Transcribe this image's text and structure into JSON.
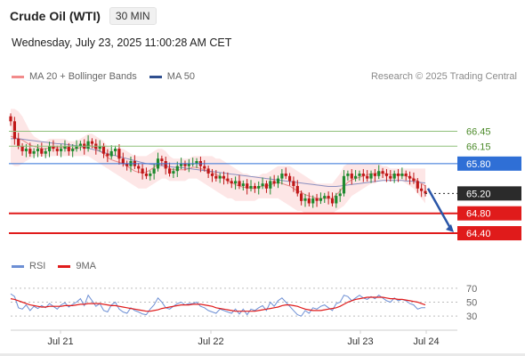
{
  "header": {
    "title": "Crude Oil (WTI)",
    "timeframe": "30 MIN",
    "datetime": "Wednesday, July 23, 2025 11:00:28 AM CET",
    "copyright": "Research © 2025 Trading Central"
  },
  "legend": {
    "items": [
      {
        "label": "MA 20 + Bollinger Bands",
        "color": "#f28b8b"
      },
      {
        "label": "MA 50",
        "color": "#2f4f8f"
      }
    ]
  },
  "rsi_legend": {
    "items": [
      {
        "label": "RSI",
        "color": "#6d8fd4"
      },
      {
        "label": "9MA",
        "color": "#e01b1b"
      }
    ]
  },
  "colors": {
    "up": "#1e8a2e",
    "down": "#c01818",
    "resistance": "#8fc07a",
    "resistance_label": "#4d8b2b",
    "pivot": "#2f6fd6",
    "support": "#e01b1b",
    "current": "#2b2b2b",
    "band_fill": "#fde2e2",
    "ma20": "#e88a8a",
    "ma50": "#8a8fbf",
    "arrow": "#2a56a8"
  },
  "chart_data": [
    {
      "type": "candlestick",
      "title": "Crude Oil (WTI)",
      "timeframe": "30 MIN",
      "x_labels": [
        "Jul 21",
        "Jul 22",
        "Jul 23",
        "Jul 24"
      ],
      "price_levels": [
        {
          "value": 66.45,
          "label": "66.45",
          "kind": "resistance"
        },
        {
          "value": 66.15,
          "label": "66.15",
          "kind": "resistance"
        },
        {
          "value": 65.8,
          "label": "65.80",
          "kind": "pivot"
        },
        {
          "value": 65.2,
          "label": "65.20",
          "kind": "current"
        },
        {
          "value": 64.8,
          "label": "64.80",
          "kind": "support"
        },
        {
          "value": 64.4,
          "label": "64.40",
          "kind": "support"
        }
      ],
      "close_series": [
        66.65,
        66.3,
        66.15,
        66.05,
        66.1,
        66.0,
        66.05,
        66.1,
        66.0,
        66.05,
        66.15,
        66.1,
        66.05,
        66.1,
        66.15,
        66.05,
        66.1,
        66.15,
        66.2,
        66.1,
        66.25,
        66.2,
        66.1,
        66.15,
        66.0,
        65.95,
        66.05,
        66.1,
        65.9,
        65.8,
        65.75,
        65.85,
        65.75,
        65.7,
        65.6,
        65.55,
        65.6,
        65.7,
        65.9,
        65.85,
        65.7,
        65.6,
        65.65,
        65.75,
        65.8,
        65.75,
        65.8,
        65.8,
        65.85,
        65.75,
        65.7,
        65.6,
        65.55,
        65.5,
        65.55,
        65.5,
        65.45,
        65.4,
        65.45,
        65.35,
        65.4,
        65.3,
        65.35,
        65.3,
        65.35,
        65.4,
        65.3,
        65.45,
        65.4,
        65.5,
        65.6,
        65.55,
        65.45,
        65.35,
        65.2,
        65.05,
        65.1,
        65.0,
        65.1,
        65.05,
        65.1,
        65.15,
        65.1,
        65.0,
        65.15,
        65.2,
        65.55,
        65.6,
        65.5,
        65.55,
        65.6,
        65.55,
        65.5,
        65.6,
        65.55,
        65.65,
        65.6,
        65.55,
        65.5,
        65.6,
        65.55,
        65.6,
        65.55,
        65.5,
        65.45,
        65.3,
        65.25,
        65.2
      ],
      "bollinger": {
        "upper": [
          66.9,
          66.9,
          66.85,
          66.75,
          66.6,
          66.45,
          66.35,
          66.3,
          66.25,
          66.25,
          66.3,
          66.3,
          66.3,
          66.3,
          66.3,
          66.25,
          66.25,
          66.25,
          66.3,
          66.35,
          66.4,
          66.4,
          66.35,
          66.3,
          66.25,
          66.15,
          66.1,
          66.1,
          66.1,
          66.1,
          66.05,
          66.0,
          65.95,
          65.95,
          65.95,
          65.95,
          66.0,
          66.05,
          66.1,
          66.1,
          66.05,
          65.95,
          65.9,
          65.9,
          65.9,
          65.9,
          65.9,
          65.95,
          65.95,
          65.95,
          65.95,
          65.95,
          65.95,
          65.9,
          65.9,
          65.85,
          65.8,
          65.75,
          65.7,
          65.65,
          65.6,
          65.6,
          65.55,
          65.55,
          65.55,
          65.6,
          65.6,
          65.65,
          65.7,
          65.75,
          65.75,
          65.75,
          65.75,
          65.7,
          65.65,
          65.6,
          65.55,
          65.5,
          65.45,
          65.4,
          65.4,
          65.4,
          65.4,
          65.4,
          65.5,
          65.6,
          65.75,
          65.8,
          65.8,
          65.8,
          65.8,
          65.8,
          65.8,
          65.8,
          65.8,
          65.8,
          65.75,
          65.75,
          65.7,
          65.7,
          65.7,
          65.7,
          65.7,
          65.7,
          65.7,
          65.7,
          65.7,
          65.7
        ],
        "lower": [
          65.8,
          65.75,
          65.75,
          65.8,
          65.85,
          65.9,
          65.95,
          65.95,
          65.95,
          65.95,
          65.95,
          65.95,
          65.95,
          65.95,
          65.95,
          65.95,
          65.95,
          65.95,
          65.95,
          65.95,
          65.95,
          65.9,
          65.85,
          65.8,
          65.75,
          65.7,
          65.65,
          65.6,
          65.55,
          65.5,
          65.45,
          65.4,
          65.35,
          65.3,
          65.3,
          65.3,
          65.35,
          65.4,
          65.45,
          65.5,
          65.5,
          65.45,
          65.45,
          65.45,
          65.45,
          65.45,
          65.5,
          65.5,
          65.5,
          65.45,
          65.4,
          65.35,
          65.3,
          65.25,
          65.2,
          65.15,
          65.1,
          65.1,
          65.05,
          65.05,
          65.05,
          65.05,
          65.05,
          65.05,
          65.1,
          65.1,
          65.1,
          65.1,
          65.1,
          65.1,
          65.05,
          65.0,
          64.95,
          64.9,
          64.85,
          64.85,
          64.8,
          64.8,
          64.8,
          64.8,
          64.8,
          64.8,
          64.8,
          64.8,
          64.85,
          64.9,
          64.95,
          65.05,
          65.15,
          65.2,
          65.25,
          65.3,
          65.35,
          65.4,
          65.4,
          65.45,
          65.45,
          65.45,
          65.45,
          65.45,
          65.45,
          65.45,
          65.4,
          65.35,
          65.3,
          65.2,
          65.1,
          65.0
        ]
      },
      "ma50": [
        66.3,
        66.3,
        66.3,
        66.29,
        66.28,
        66.27,
        66.26,
        66.25,
        66.24,
        66.23,
        66.22,
        66.21,
        66.2,
        66.2,
        66.19,
        66.18,
        66.17,
        66.16,
        66.15,
        66.13,
        66.11,
        66.09,
        66.07,
        66.05,
        66.02,
        66.0,
        65.98,
        65.96,
        65.94,
        65.92,
        65.9,
        65.88,
        65.86,
        65.84,
        65.82,
        65.8,
        65.79,
        65.78,
        65.77,
        65.76,
        65.75,
        65.74,
        65.73,
        65.72,
        65.72,
        65.71,
        65.7,
        65.69,
        65.68,
        65.67,
        65.66,
        65.65,
        65.64,
        65.63,
        65.62,
        65.61,
        65.6,
        65.59,
        65.58,
        65.57,
        65.56,
        65.55,
        65.54,
        65.53,
        65.52,
        65.51,
        65.5,
        65.49,
        65.48,
        65.47,
        65.46,
        65.45,
        65.44,
        65.43,
        65.42,
        65.41,
        65.4,
        65.39,
        65.38,
        65.37,
        65.36,
        65.35,
        65.34,
        65.34,
        65.34,
        65.35,
        65.36,
        65.37,
        65.38,
        65.39,
        65.4,
        65.41,
        65.42,
        65.43,
        65.44,
        65.45,
        65.46,
        65.46,
        65.46,
        65.46,
        65.46,
        65.46,
        65.45,
        65.45,
        65.44,
        65.43,
        65.42,
        65.41
      ],
      "projection": {
        "from": 65.3,
        "to": 64.42
      }
    },
    {
      "type": "line",
      "title": "RSI",
      "y_ticks": [
        70,
        50,
        30
      ],
      "ylim": [
        20,
        80
      ],
      "series": [
        {
          "name": "RSI",
          "values": [
            62,
            58,
            42,
            40,
            46,
            38,
            44,
            41,
            45,
            42,
            48,
            44,
            40,
            46,
            49,
            43,
            47,
            50,
            55,
            45,
            60,
            52,
            44,
            48,
            38,
            36,
            46,
            50,
            40,
            36,
            34,
            42,
            38,
            36,
            33,
            32,
            40,
            46,
            56,
            50,
            42,
            40,
            44,
            48,
            50,
            46,
            48,
            48,
            50,
            44,
            42,
            38,
            36,
            34,
            40,
            38,
            36,
            34,
            40,
            33,
            40,
            32,
            40,
            38,
            42,
            45,
            38,
            50,
            44,
            52,
            56,
            50,
            44,
            38,
            32,
            30,
            38,
            34,
            42,
            40,
            44,
            46,
            42,
            38,
            48,
            50,
            60,
            58,
            52,
            56,
            60,
            56,
            54,
            58,
            55,
            60,
            56,
            52,
            50,
            56,
            52,
            54,
            52,
            48,
            46,
            40,
            42,
            42
          ]
        },
        {
          "name": "9MA",
          "values": [
            55,
            54,
            52,
            50,
            48,
            46,
            45,
            44,
            43,
            43,
            44,
            44,
            44,
            44,
            45,
            45,
            45,
            46,
            47,
            47,
            48,
            48,
            48,
            48,
            47,
            46,
            45,
            45,
            44,
            43,
            42,
            41,
            40,
            39,
            38,
            37,
            37,
            38,
            39,
            41,
            42,
            43,
            44,
            45,
            46,
            46,
            46,
            47,
            47,
            47,
            46,
            45,
            44,
            42,
            41,
            40,
            39,
            38,
            37,
            37,
            37,
            37,
            37,
            37,
            38,
            39,
            40,
            41,
            42,
            43,
            45,
            46,
            46,
            45,
            44,
            42,
            40,
            39,
            38,
            38,
            38,
            39,
            40,
            41,
            42,
            44,
            47,
            50,
            52,
            54,
            55,
            56,
            57,
            57,
            57,
            57,
            57,
            56,
            55,
            55,
            54,
            54,
            53,
            52,
            51,
            50,
            48,
            46
          ]
        }
      ]
    }
  ]
}
